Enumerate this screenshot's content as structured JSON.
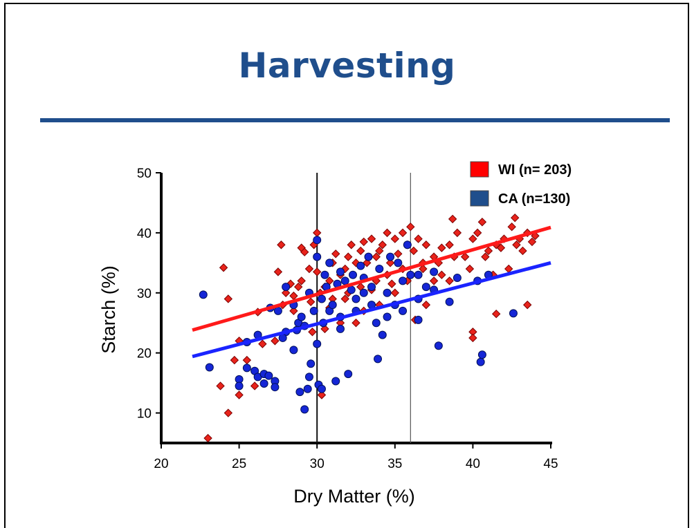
{
  "slide": {
    "title": "Harvesting"
  },
  "colors": {
    "title": "#1f4e8c",
    "rule": "#1f4e8c",
    "wi": "#e8231b",
    "ca": "#1526d6",
    "wi_line": "#ff1a1a",
    "ca_line": "#1a24ff",
    "legend_ca_swatch": "#1f4e8c"
  },
  "chart_data": {
    "type": "scatter",
    "xlabel": "Dry Matter (%)",
    "ylabel": "Starch (%)",
    "xlim": [
      20,
      45
    ],
    "ylim": [
      5,
      50
    ],
    "xticks": [
      "20",
      "25",
      "30",
      "35",
      "40",
      "45"
    ],
    "yticks": [
      "10",
      "20",
      "30",
      "40",
      "50"
    ],
    "grid": false,
    "legend": "top-right",
    "reference_lines_x": [
      30,
      36
    ],
    "series": [
      {
        "name": "WI (n= 203)",
        "marker": "diamond",
        "trend": {
          "x": [
            22,
            45
          ],
          "y": [
            23.8,
            40.9
          ]
        },
        "points": [
          [
            23,
            5.8
          ],
          [
            24.3,
            10
          ],
          [
            23.8,
            14.5
          ],
          [
            25,
            13
          ],
          [
            26,
            14.5
          ],
          [
            24.7,
            18.8
          ],
          [
            25.5,
            18.8
          ],
          [
            24.3,
            29
          ],
          [
            24,
            34.2
          ],
          [
            25,
            22
          ],
          [
            26.2,
            26.8
          ],
          [
            26.5,
            21.5
          ],
          [
            27.5,
            33.5
          ],
          [
            27.7,
            38
          ],
          [
            27.3,
            22
          ],
          [
            27.8,
            28
          ],
          [
            28,
            30
          ],
          [
            28.3,
            31.5
          ],
          [
            28.5,
            29.5
          ],
          [
            28.8,
            31
          ],
          [
            29,
            37.5
          ],
          [
            29.2,
            36.8
          ],
          [
            29.5,
            34
          ],
          [
            29.8,
            38
          ],
          [
            29.6,
            28.5
          ],
          [
            30,
            40
          ],
          [
            30.2,
            30
          ],
          [
            30.5,
            31
          ],
          [
            30.8,
            32
          ],
          [
            31,
            35
          ],
          [
            31.2,
            36.5
          ],
          [
            31.5,
            33
          ],
          [
            31.8,
            34
          ],
          [
            32,
            36
          ],
          [
            32.2,
            38
          ],
          [
            32.5,
            35
          ],
          [
            32.8,
            37
          ],
          [
            33,
            38.5
          ],
          [
            33.2,
            35
          ],
          [
            33.5,
            39
          ],
          [
            33.8,
            36
          ],
          [
            34,
            37
          ],
          [
            34.2,
            38
          ],
          [
            34.5,
            40
          ],
          [
            34.7,
            35
          ],
          [
            35,
            39
          ],
          [
            35.2,
            36.5
          ],
          [
            35.5,
            40
          ],
          [
            35.8,
            38
          ],
          [
            36,
            41
          ],
          [
            36.2,
            37
          ],
          [
            36.5,
            39
          ],
          [
            36.8,
            35
          ],
          [
            37,
            38
          ],
          [
            37.5,
            36
          ],
          [
            38,
            37.5
          ],
          [
            38.5,
            38
          ],
          [
            38.7,
            42.3
          ],
          [
            39,
            40
          ],
          [
            39.5,
            36
          ],
          [
            40,
            39
          ],
          [
            40.3,
            40
          ],
          [
            40.6,
            41.8
          ],
          [
            41,
            37
          ],
          [
            41.5,
            38
          ],
          [
            42,
            39
          ],
          [
            42.5,
            41
          ],
          [
            42.7,
            42.5
          ],
          [
            43,
            39
          ],
          [
            43.5,
            40
          ],
          [
            43.8,
            38.5
          ],
          [
            44,
            39.5
          ],
          [
            41.5,
            26.5
          ],
          [
            43.5,
            28
          ],
          [
            40,
            23.5
          ],
          [
            40,
            22.5
          ],
          [
            30.3,
            13
          ],
          [
            29.7,
            23.5
          ],
          [
            30.5,
            24
          ],
          [
            31.5,
            25
          ],
          [
            32.5,
            25
          ],
          [
            33,
            27
          ],
          [
            34,
            28
          ],
          [
            35,
            30
          ],
          [
            36,
            33
          ],
          [
            36.3,
            25.5
          ],
          [
            37,
            28
          ],
          [
            37.5,
            32
          ],
          [
            38,
            33
          ],
          [
            38.5,
            32
          ],
          [
            31,
            29
          ],
          [
            32,
            30
          ],
          [
            33.5,
            30.5
          ],
          [
            34.5,
            33
          ],
          [
            35.5,
            34
          ],
          [
            30,
            33.5
          ],
          [
            29,
            32
          ],
          [
            28.5,
            27
          ],
          [
            30.8,
            27.5
          ],
          [
            31.8,
            29
          ],
          [
            32.8,
            31
          ],
          [
            33.8,
            32
          ],
          [
            34.8,
            31.5
          ],
          [
            35.8,
            32
          ],
          [
            36.8,
            34
          ],
          [
            37.8,
            35
          ],
          [
            38.8,
            36
          ],
          [
            39.8,
            34
          ],
          [
            40.8,
            36
          ],
          [
            41.8,
            37.5
          ],
          [
            42.8,
            38
          ],
          [
            43.2,
            37
          ],
          [
            41.3,
            33
          ],
          [
            42.3,
            34
          ]
        ]
      },
      {
        "name": "CA (n=130)",
        "marker": "circle",
        "trend": {
          "x": [
            22,
            45
          ],
          "y": [
            19.4,
            35
          ]
        },
        "points": [
          [
            22.7,
            29.7
          ],
          [
            23.1,
            17.6
          ],
          [
            25,
            15.6
          ],
          [
            25,
            14.5
          ],
          [
            25.5,
            17.5
          ],
          [
            26,
            17
          ],
          [
            26.2,
            16
          ],
          [
            26.6,
            16.5
          ],
          [
            26.9,
            16.2
          ],
          [
            27.3,
            15.3
          ],
          [
            27.3,
            14.3
          ],
          [
            26.6,
            14.9
          ],
          [
            26.2,
            23
          ],
          [
            25.5,
            21.8
          ],
          [
            28,
            23.5
          ],
          [
            28.5,
            20.5
          ],
          [
            28.8,
            25
          ],
          [
            28.9,
            13.5
          ],
          [
            29.2,
            10.6
          ],
          [
            29.4,
            14
          ],
          [
            29.5,
            16
          ],
          [
            29.6,
            18.2
          ],
          [
            30,
            21.5
          ],
          [
            30.1,
            14.7
          ],
          [
            30.3,
            14
          ],
          [
            30.4,
            25
          ],
          [
            30.8,
            27
          ],
          [
            31,
            28
          ],
          [
            31.2,
            15.3
          ],
          [
            31.5,
            26
          ],
          [
            32,
            16.5
          ],
          [
            32.5,
            27
          ],
          [
            33,
            30
          ],
          [
            33.5,
            31
          ],
          [
            33.8,
            25
          ],
          [
            33.9,
            19
          ],
          [
            34.2,
            23
          ],
          [
            34.5,
            30
          ],
          [
            35,
            28
          ],
          [
            35.5,
            32
          ],
          [
            35.8,
            38
          ],
          [
            36,
            33
          ],
          [
            36.5,
            33
          ],
          [
            36.5,
            25.5
          ],
          [
            37,
            31
          ],
          [
            37.5,
            33.5
          ],
          [
            37.8,
            21.2
          ],
          [
            38.5,
            28.5
          ],
          [
            39,
            32.5
          ],
          [
            40.3,
            32
          ],
          [
            40.5,
            18.5
          ],
          [
            40.6,
            19.7
          ],
          [
            42.6,
            26.6
          ],
          [
            41,
            33
          ],
          [
            30,
            38.8
          ],
          [
            30,
            36
          ],
          [
            30.5,
            33
          ],
          [
            29.5,
            30
          ],
          [
            28.5,
            28
          ],
          [
            28,
            31
          ],
          [
            27.5,
            27
          ],
          [
            27,
            27.5
          ],
          [
            29,
            26
          ],
          [
            29.8,
            27
          ],
          [
            30.3,
            29
          ],
          [
            30.6,
            31
          ],
          [
            31.3,
            31.5
          ],
          [
            31.8,
            32
          ],
          [
            32.3,
            33
          ],
          [
            32.8,
            34.5
          ],
          [
            33.3,
            36
          ],
          [
            34,
            34
          ],
          [
            34.7,
            36
          ],
          [
            35.2,
            35
          ],
          [
            29.2,
            24.5
          ],
          [
            28.7,
            23.8
          ],
          [
            27.8,
            22.5
          ],
          [
            31.5,
            24
          ],
          [
            32.5,
            29
          ],
          [
            33.5,
            28
          ],
          [
            34.5,
            26
          ],
          [
            35.5,
            27
          ],
          [
            36.5,
            29
          ],
          [
            37.5,
            30.5
          ],
          [
            30.8,
            35
          ],
          [
            31.5,
            33.5
          ],
          [
            32.2,
            30.5
          ],
          [
            33,
            32.5
          ]
        ]
      }
    ]
  }
}
